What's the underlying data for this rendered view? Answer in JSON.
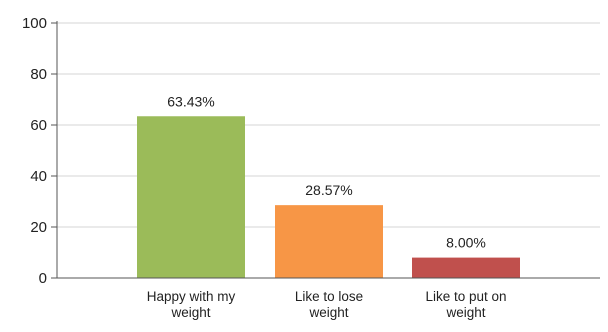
{
  "chart_data": {
    "type": "bar",
    "categories": [
      [
        "Happy with my",
        "weight"
      ],
      [
        "Like to lose",
        "weight"
      ],
      [
        "Like to put on",
        "weight"
      ]
    ],
    "values": [
      63.43,
      28.57,
      8.0
    ],
    "data_labels": [
      "63.43%",
      "28.57%",
      "8.00%"
    ],
    "bar_colors": [
      "#9bbb59",
      "#f79646",
      "#c0504d"
    ],
    "ylim": [
      0,
      100
    ],
    "yticks": [
      0,
      20,
      40,
      60,
      80,
      100
    ],
    "grid": true,
    "legend": "none"
  }
}
